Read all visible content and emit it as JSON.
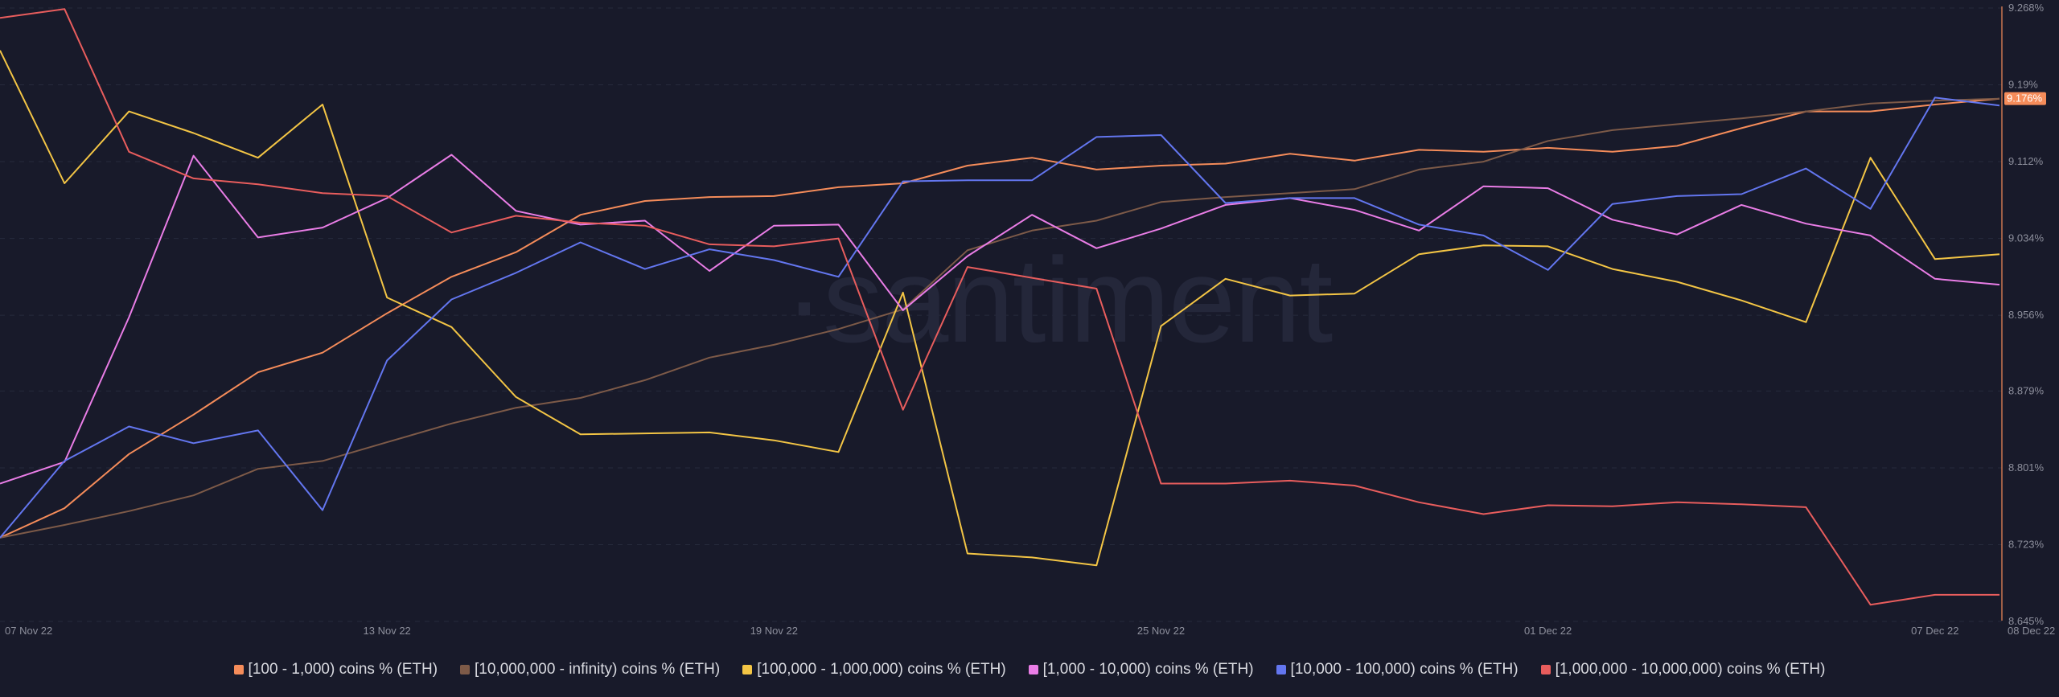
{
  "chart_data": {
    "type": "line",
    "watermark": "·santiment",
    "x": [
      "07 Nov 22",
      "08 Nov 22",
      "09 Nov 22",
      "10 Nov 22",
      "11 Nov 22",
      "12 Nov 22",
      "13 Nov 22",
      "14 Nov 22",
      "15 Nov 22",
      "16 Nov 22",
      "17 Nov 22",
      "18 Nov 22",
      "19 Nov 22",
      "20 Nov 22",
      "21 Nov 22",
      "22 Nov 22",
      "23 Nov 22",
      "24 Nov 22",
      "25 Nov 22",
      "26 Nov 22",
      "27 Nov 22",
      "28 Nov 22",
      "29 Nov 22",
      "30 Nov 22",
      "01 Dec 22",
      "02 Dec 22",
      "03 Dec 22",
      "04 Dec 22",
      "05 Dec 22",
      "06 Dec 22",
      "07 Dec 22",
      "08 Dec 22"
    ],
    "x_tick_labels": [
      "07 Nov 22",
      "13 Nov 22",
      "19 Nov 22",
      "25 Nov 22",
      "01 Dec 22",
      "07 Dec 22",
      "08 Dec 22"
    ],
    "y_tick_labels": [
      "9.268%",
      "9.19%",
      "9.112%",
      "9.034%",
      "8.956%",
      "8.879%",
      "8.801%",
      "8.723%",
      "8.645%"
    ],
    "ylim": [
      8.645,
      9.268
    ],
    "current_value_label": "9.176%",
    "current_value": 9.176,
    "series": [
      {
        "name": "[100 - 1,000) coins % (ETH)",
        "color": "#f58c5a",
        "values": [
          8.73,
          8.76,
          8.815,
          8.855,
          8.898,
          8.918,
          8.958,
          8.995,
          9.02,
          9.058,
          9.072,
          9.076,
          9.077,
          9.086,
          9.09,
          9.108,
          9.116,
          9.104,
          9.108,
          9.11,
          9.12,
          9.113,
          9.124,
          9.122,
          9.126,
          9.122,
          9.128,
          9.146,
          9.163,
          9.163,
          9.17,
          9.176
        ]
      },
      {
        "name": "[10,000,000 - infinity) coins % (ETH)",
        "color": "#7d5a48",
        "values": [
          8.73,
          8.743,
          8.757,
          8.773,
          8.8,
          8.808,
          8.827,
          8.846,
          8.862,
          8.872,
          8.89,
          8.913,
          8.926,
          8.942,
          8.962,
          9.022,
          9.042,
          9.052,
          9.071,
          9.076,
          9.08,
          9.084,
          9.104,
          9.112,
          9.133,
          9.144,
          9.15,
          9.156,
          9.163,
          9.171,
          9.174,
          9.176
        ]
      },
      {
        "name": "[100,000  - 1,000,000) coins % (ETH)",
        "color": "#f3c545",
        "values": [
          9.225,
          9.09,
          9.163,
          9.141,
          9.116,
          9.17,
          8.974,
          8.944,
          8.873,
          8.835,
          8.836,
          8.837,
          8.829,
          8.817,
          8.979,
          8.714,
          8.71,
          8.702,
          8.945,
          8.993,
          8.976,
          8.978,
          9.018,
          9.027,
          9.026,
          9.003,
          8.99,
          8.971,
          8.949,
          9.116,
          9.013,
          9.018
        ]
      },
      {
        "name": "[1,000 - 10,000) coins % (ETH)",
        "color": "#e97de6",
        "values": [
          8.785,
          8.807,
          8.954,
          9.118,
          9.035,
          9.045,
          9.075,
          9.119,
          9.062,
          9.048,
          9.052,
          9.001,
          9.047,
          9.048,
          8.961,
          9.016,
          9.058,
          9.024,
          9.044,
          9.068,
          9.075,
          9.063,
          9.042,
          9.087,
          9.085,
          9.053,
          9.038,
          9.068,
          9.049,
          9.037,
          8.993,
          8.987
        ]
      },
      {
        "name": "[10,000 - 100,000) coins % (ETH)",
        "color": "#6376ef",
        "values": [
          8.73,
          8.808,
          8.843,
          8.826,
          8.839,
          8.758,
          8.91,
          8.972,
          8.999,
          9.03,
          9.003,
          9.023,
          9.012,
          8.995,
          9.092,
          9.093,
          9.093,
          9.137,
          9.139,
          9.07,
          9.075,
          9.075,
          9.048,
          9.037,
          9.002,
          9.069,
          9.077,
          9.079,
          9.105,
          9.064,
          9.177,
          9.169
        ]
      },
      {
        "name": "[1,000,000 - 10,000,000) coins % (ETH)",
        "color": "#e85d5d",
        "values": [
          9.258,
          9.267,
          9.122,
          9.095,
          9.089,
          9.08,
          9.077,
          9.04,
          9.057,
          9.05,
          9.047,
          9.028,
          9.026,
          9.034,
          8.86,
          9.005,
          8.994,
          8.983,
          8.785,
          8.785,
          8.788,
          8.783,
          8.766,
          8.754,
          8.763,
          8.762,
          8.766,
          8.764,
          8.761,
          8.662,
          8.672,
          8.672
        ]
      }
    ]
  }
}
